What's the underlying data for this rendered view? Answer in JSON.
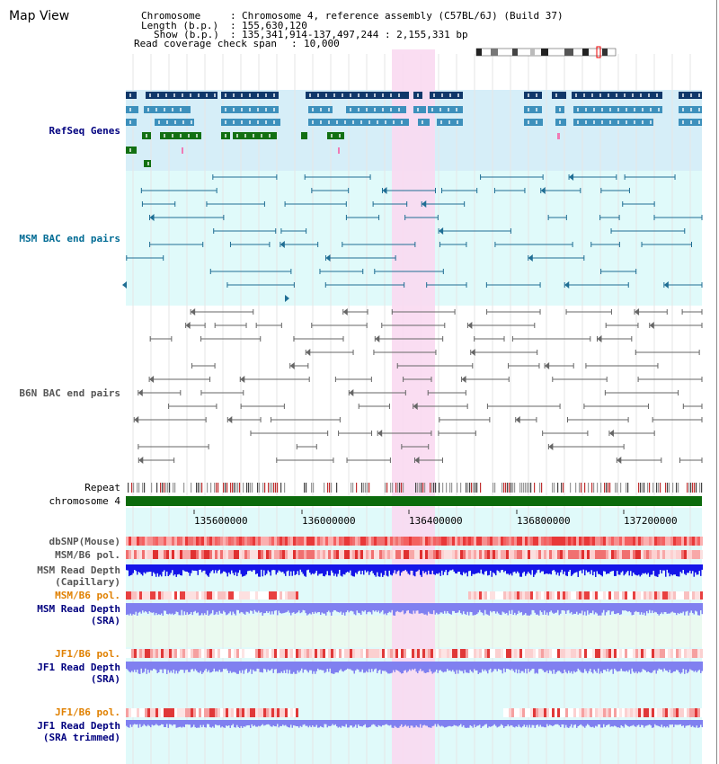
{
  "header": {
    "title": "Map View",
    "chromosome_key": "Chromosome",
    "chromosome_val": "Chromosome 4, reference assembly (C57BL/6J) (Build 37)",
    "length_key": "Length (b.p.)",
    "length_val": "155,630,120",
    "show_key": "Show (b.p.)",
    "show_val": "135,341,914-137,497,244 : 2,155,331 bp",
    "coverage_key": "Read coverage check span",
    "coverage_val": "10,000"
  },
  "tracks": {
    "refseq": "RefSeq Genes",
    "msm_bac": "MSM BAC end pairs",
    "b6n_bac": "B6N BAC end pairs",
    "repeat": "Repeat",
    "chromosome": "chromosome 4",
    "dbsnp": "dbSNP(Mouse)",
    "msm_b6_pol": "MSM/B6 pol.",
    "msm_depth_cap_1": "MSM Read Depth",
    "msm_depth_cap_2": "(Capillary)",
    "msm_b6_pol_sra": "MSM/B6 pol.",
    "msm_depth_sra_1": "MSM Read Depth",
    "msm_depth_sra_2": "(SRA)",
    "jf1_b6_pol": "JF1/B6 pol.",
    "jf1_depth_1": "JF1 Read Depth",
    "jf1_depth_2": "(SRA)",
    "jf1_b6_pol_2": "JF1/B6 pol.",
    "jf1_depth_trim_1": "JF1 Read Depth",
    "jf1_depth_trim_2": "(SRA trimmed)"
  },
  "axis": {
    "ticks": [
      "135600000",
      "136000000",
      "136400000",
      "136800000",
      "137200000"
    ]
  },
  "colors": {
    "panel": "#e0fafa",
    "refseq_bg": "#d6eef8",
    "highlight": "#f9d9f1",
    "gene_dark": "#10386a",
    "gene_mid": "#3d90bc",
    "gene_green": "#127012",
    "msm_bac": "#1f6e94",
    "b6n_bac": "#666666",
    "chrom_bar": "#0c6b0c",
    "depth_blue": "#1515e8",
    "depth_sra": "#8080f0",
    "label_blue": "#00007f",
    "label_orange": "#e08000",
    "label_teal": "#006b94",
    "label_gray": "#555555"
  }
}
